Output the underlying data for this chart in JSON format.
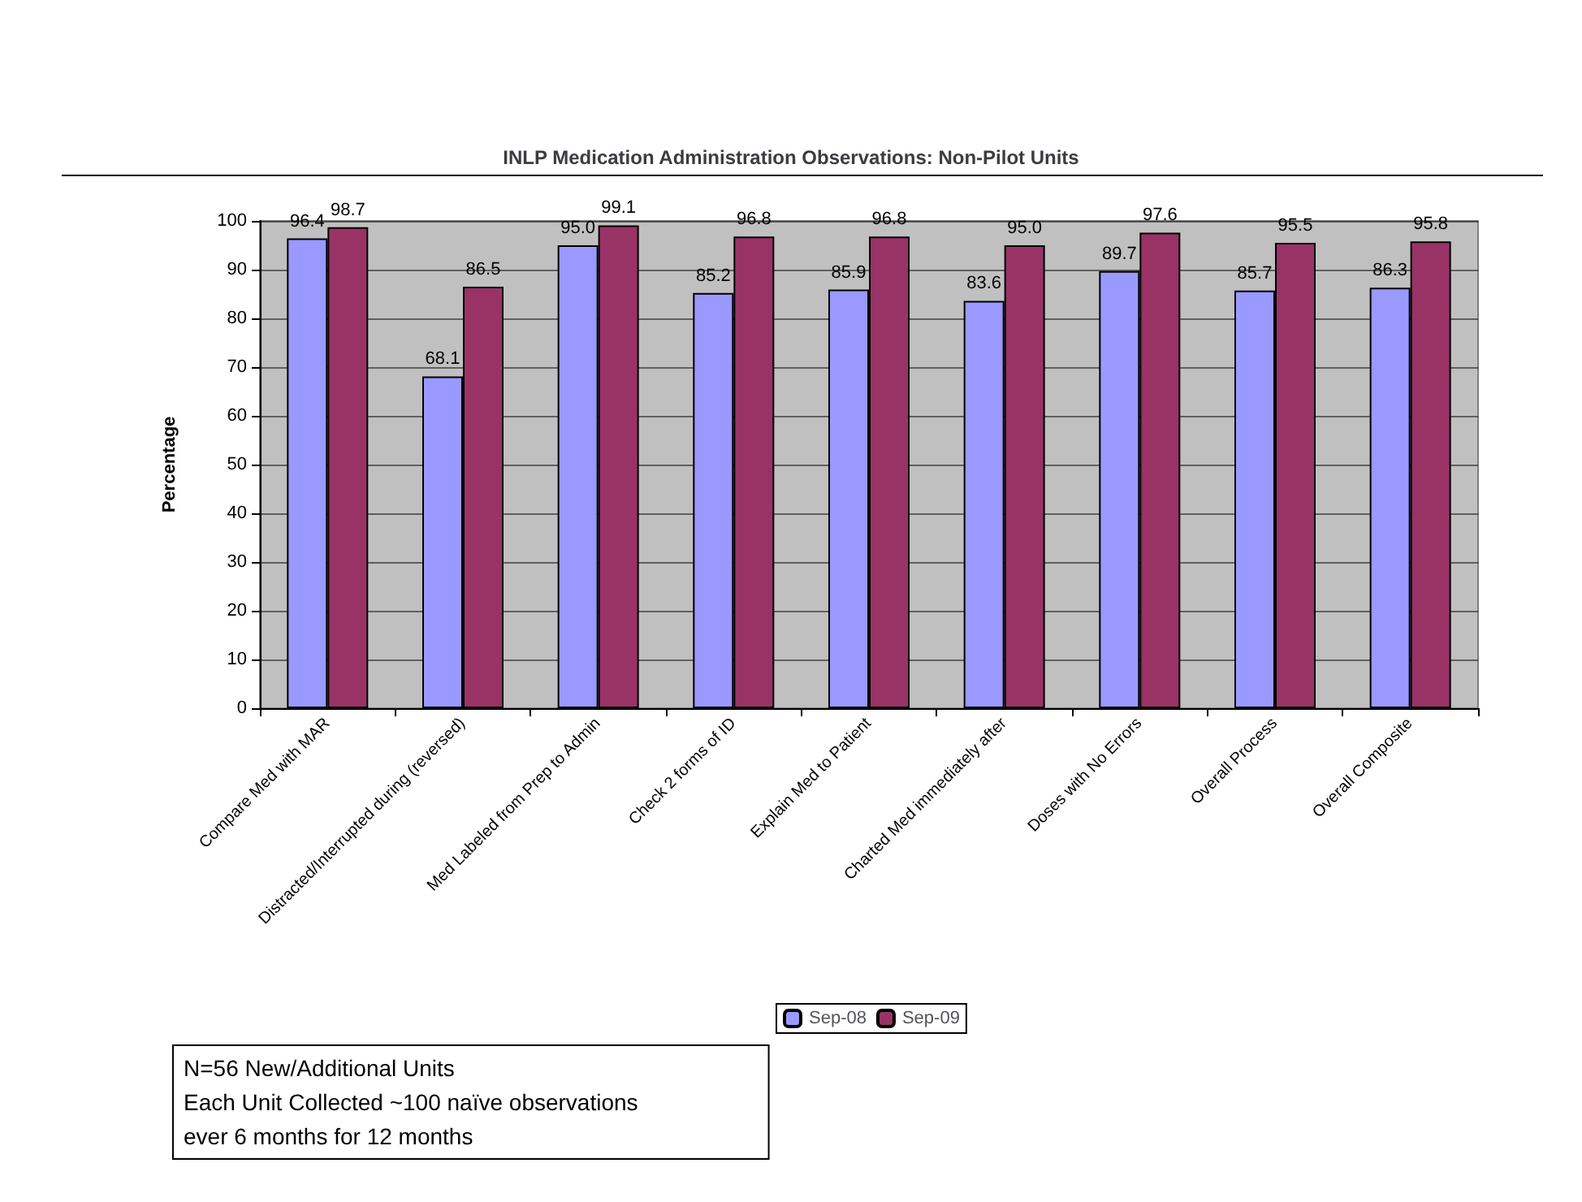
{
  "chart_data": {
    "type": "bar",
    "title": "INLP Medication Administration Observations: Non-Pilot Units",
    "ylabel": "Percentage",
    "categories": [
      "Compare Med with MAR",
      "Distracted/Interrupted during (reversed)",
      "Med Labeled from Prep to Admin",
      "Check 2 forms of ID",
      "Explain Med to Patient",
      "Charted Med immediately after",
      "Doses with No Errors",
      "Overall Process",
      "Overall Composite"
    ],
    "series": [
      {
        "name": "Sep-08",
        "color": "#9999ff",
        "values": [
          96.4,
          68.1,
          95.0,
          85.2,
          85.9,
          83.6,
          89.7,
          85.7,
          86.3
        ],
        "value_labels": [
          "96.4",
          "68.1",
          "95.0",
          "85.2",
          "85.9",
          "83.6",
          "89.7",
          "85.7",
          "86.3"
        ]
      },
      {
        "name": "Sep-09",
        "color": "#993366",
        "values": [
          98.7,
          86.5,
          99.1,
          96.8,
          96.8,
          95.0,
          97.6,
          95.5,
          95.8
        ],
        "value_labels": [
          "98.7",
          "86.5",
          "99.1",
          "96.8",
          "96.8",
          "95.0",
          "97.6",
          "95.5",
          "95.8"
        ]
      }
    ],
    "ylim": [
      0,
      100
    ],
    "yticks": [
      0,
      10,
      20,
      30,
      40,
      50,
      60,
      70,
      80,
      90,
      100
    ],
    "grid": "y",
    "legend": "bottom",
    "annotations": [
      "N=56 New/Additional Units\nEach Unit Collected ~100 naïve observations\never 6 months for 12 months"
    ]
  }
}
